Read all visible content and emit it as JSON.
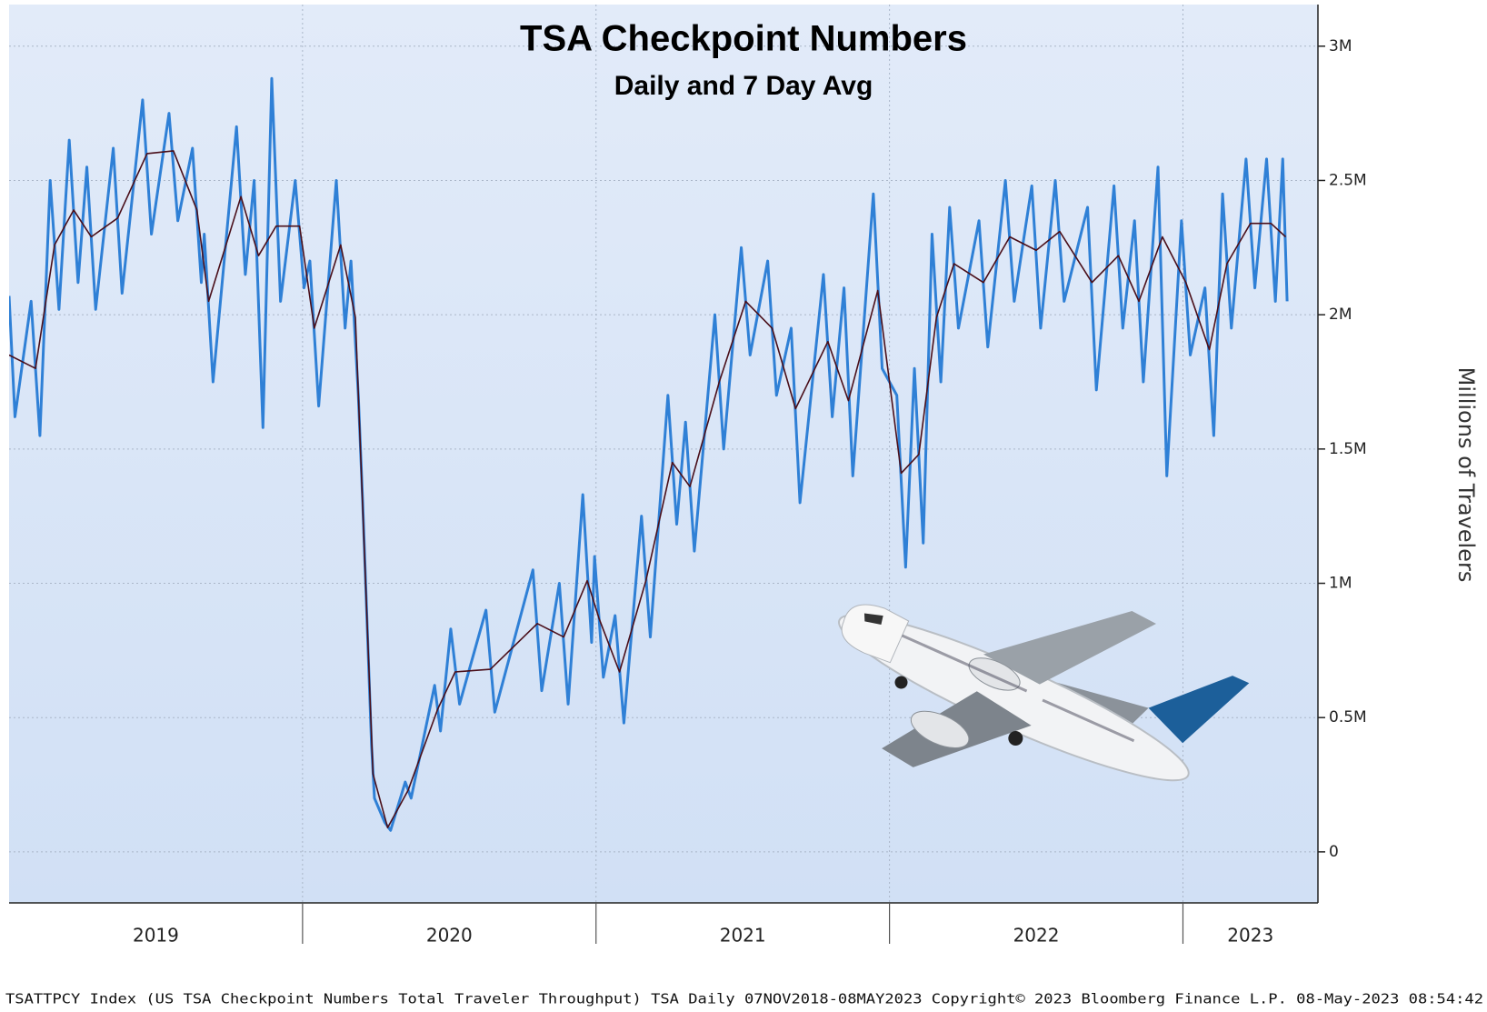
{
  "chart_data": {
    "type": "line",
    "title": "TSA Checkpoint Numbers",
    "subtitle": "Daily and 7 Day Avg",
    "y_label": "Millions of Travelers",
    "footer": "TSATTPCY Index (US TSA Checkpoint Numbers Total Traveler Throughput) TSA  Daily 07NOV2018-08MAY2023  Copyright© 2023 Bloomberg Finance L.P.  08-May-2023 08:54:42",
    "xlim": [
      2019.0,
      2023.46
    ],
    "xticks": [
      2019,
      2020,
      2021,
      2022,
      2023
    ],
    "ylim": [
      -0.19,
      3.155
    ],
    "yticks": [
      0,
      {
        "value": 0.5,
        "label": "0.5M"
      },
      {
        "value": 1,
        "label": "1M"
      },
      {
        "value": 1.5,
        "label": "1.5M"
      },
      {
        "value": 2,
        "label": "2M"
      },
      {
        "value": 2.5,
        "label": "2.5M"
      },
      {
        "value": 3,
        "label": "3M"
      }
    ],
    "grid": true,
    "series": [
      {
        "color": "#2f80d6",
        "x": [
          2019.0,
          2019.02,
          2019.075,
          2019.105,
          2019.14,
          2019.17,
          2019.205,
          2019.235,
          2019.265,
          2019.295,
          2019.355,
          2019.385,
          2019.455,
          2019.485,
          2019.545,
          2019.575,
          2019.625,
          2019.655,
          2019.665,
          2019.695,
          2019.775,
          2019.805,
          2019.835,
          2019.865,
          2019.895,
          2019.925,
          2019.975,
          2020.005,
          2020.025,
          2020.055,
          2020.115,
          2020.145,
          2020.165,
          2020.19,
          2020.205,
          2020.215,
          2020.235,
          2020.245,
          2020.28,
          2020.3,
          2020.35,
          2020.37,
          2020.45,
          2020.47,
          2020.505,
          2020.535,
          2020.625,
          2020.655,
          2020.785,
          2020.815,
          2020.875,
          2020.905,
          2020.955,
          2020.985,
          2020.995,
          2021.025,
          2021.065,
          2021.095,
          2021.155,
          2021.185,
          2021.245,
          2021.275,
          2021.305,
          2021.335,
          2021.405,
          2021.435,
          2021.495,
          2021.525,
          2021.585,
          2021.615,
          2021.665,
          2021.695,
          2021.775,
          2021.805,
          2021.845,
          2021.875,
          2021.945,
          2021.975,
          2022.025,
          2022.055,
          2022.085,
          2022.115,
          2022.145,
          2022.175,
          2022.205,
          2022.235,
          2022.305,
          2022.335,
          2022.395,
          2022.425,
          2022.485,
          2022.515,
          2022.565,
          2022.595,
          2022.675,
          2022.705,
          2022.765,
          2022.795,
          2022.835,
          2022.865,
          2022.915,
          2022.945,
          2022.995,
          2023.025,
          2023.075,
          2023.105,
          2023.135,
          2023.165,
          2023.215,
          2023.245,
          2023.285,
          2023.315,
          2023.34,
          2023.355
        ],
        "values": [
          2.07,
          1.62,
          2.05,
          1.55,
          2.5,
          2.02,
          2.65,
          2.12,
          2.55,
          2.02,
          2.62,
          2.08,
          2.8,
          2.3,
          2.75,
          2.35,
          2.62,
          2.12,
          2.3,
          1.75,
          2.7,
          2.15,
          2.5,
          1.58,
          2.88,
          2.05,
          2.5,
          2.1,
          2.2,
          1.66,
          2.5,
          1.95,
          2.2,
          1.7,
          1.3,
          1.0,
          0.4,
          0.2,
          0.11,
          0.08,
          0.26,
          0.2,
          0.62,
          0.45,
          0.83,
          0.55,
          0.9,
          0.52,
          1.05,
          0.6,
          1.0,
          0.55,
          1.33,
          0.78,
          1.1,
          0.65,
          0.88,
          0.48,
          1.25,
          0.8,
          1.7,
          1.22,
          1.6,
          1.12,
          2.0,
          1.5,
          2.25,
          1.85,
          2.2,
          1.7,
          1.95,
          1.3,
          2.15,
          1.62,
          2.1,
          1.4,
          2.45,
          1.8,
          1.7,
          1.06,
          1.8,
          1.15,
          2.3,
          1.75,
          2.4,
          1.95,
          2.35,
          1.88,
          2.5,
          2.05,
          2.48,
          1.95,
          2.5,
          2.05,
          2.4,
          1.72,
          2.48,
          1.95,
          2.35,
          1.75,
          2.55,
          1.4,
          2.35,
          1.85,
          2.1,
          1.55,
          2.45,
          1.95,
          2.58,
          2.1,
          2.58,
          2.05,
          2.58,
          2.05
        ]
      },
      {
        "color": "#4a0f1a",
        "x": [
          2019.0,
          2019.09,
          2019.155,
          2019.22,
          2019.28,
          2019.37,
          2019.47,
          2019.56,
          2019.64,
          2019.68,
          2019.79,
          2019.85,
          2019.91,
          2019.99,
          2020.04,
          2020.13,
          2020.18,
          2020.21,
          2020.24,
          2020.29,
          2020.36,
          2020.46,
          2020.52,
          2020.64,
          2020.8,
          2020.89,
          2020.97,
          2021.01,
          2021.08,
          2021.17,
          2021.26,
          2021.32,
          2021.42,
          2021.51,
          2021.6,
          2021.68,
          2021.79,
          2021.86,
          2021.96,
          2022.04,
          2022.1,
          2022.16,
          2022.22,
          2022.32,
          2022.41,
          2022.5,
          2022.58,
          2022.69,
          2022.78,
          2022.85,
          2022.93,
          2023.01,
          2023.09,
          2023.15,
          2023.23,
          2023.3,
          2023.35
        ],
        "values": [
          1.85,
          1.8,
          2.26,
          2.39,
          2.29,
          2.36,
          2.6,
          2.61,
          2.39,
          2.05,
          2.44,
          2.22,
          2.33,
          2.33,
          1.95,
          2.26,
          1.99,
          1.14,
          0.29,
          0.09,
          0.23,
          0.53,
          0.67,
          0.68,
          0.85,
          0.8,
          1.01,
          0.87,
          0.67,
          1.01,
          1.45,
          1.36,
          1.75,
          2.05,
          1.95,
          1.65,
          1.9,
          1.68,
          2.09,
          1.41,
          1.48,
          1.99,
          2.19,
          2.12,
          2.29,
          2.24,
          2.31,
          2.12,
          2.22,
          2.05,
          2.29,
          2.12,
          1.87,
          2.19,
          2.34,
          2.34,
          2.29
        ]
      }
    ]
  }
}
